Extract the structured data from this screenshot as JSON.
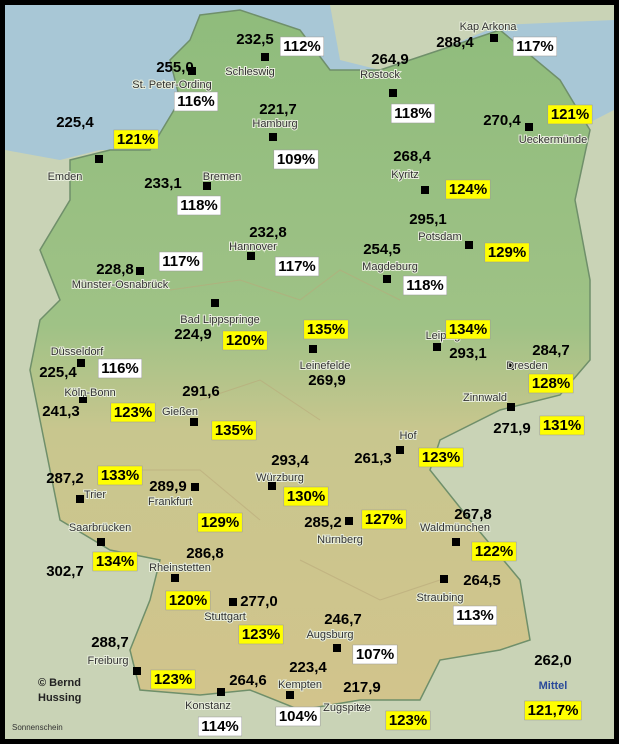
{
  "map": {
    "stations": [
      {
        "name": "Schleswig",
        "value": "232,5",
        "percent": "112%",
        "box": "#ffffff"
      },
      {
        "name": "St. Peter-Ording",
        "value": "255,0",
        "percent": "116%",
        "box": "#ffffff"
      },
      {
        "name": "Kap Arkona",
        "value": "288,4",
        "percent": "117%",
        "box": "#ffffff"
      },
      {
        "name": "Rostock",
        "value": "264,9",
        "percent": "118%",
        "box": "#ffffff"
      },
      {
        "name": "Hamburg",
        "value": "221,7",
        "percent": "109%",
        "box": "#ffffff"
      },
      {
        "name": "Emden",
        "value": "225,4",
        "percent": "121%",
        "box": "#ffff00"
      },
      {
        "name": "Ueckermünde",
        "value": "270,4",
        "percent": "121%",
        "box": "#ffff00"
      },
      {
        "name": "Kyritz",
        "value": "268,4",
        "percent": "124%",
        "box": "#ffff00"
      },
      {
        "name": "Bremen",
        "value": "233,1",
        "percent": "118%",
        "box": "#ffffff"
      },
      {
        "name": "Potsdam",
        "value": "295,1",
        "percent": "129%",
        "box": "#ffff00"
      },
      {
        "name": "Hannover",
        "value": "232,8",
        "percent": "117%",
        "box": "#ffffff"
      },
      {
        "name": "Münster-Osnabrück",
        "value": "228,8",
        "percent": "117%",
        "box": "#ffffff"
      },
      {
        "name": "Magdeburg",
        "value": "254,5",
        "percent": "118%",
        "box": "#ffffff"
      },
      {
        "name": "Bad Lippspringe",
        "value": "224,9",
        "percent": "120%",
        "box": "#ffff00"
      },
      {
        "name": "Leinefelde",
        "value": "269,9",
        "percent": "135%",
        "box": "#ffff00"
      },
      {
        "name": "Leipzig",
        "value": "293,1",
        "percent": "134%",
        "box": "#ffff00"
      },
      {
        "name": "Dresden",
        "value": "284,7",
        "percent": "128%",
        "box": "#ffff00"
      },
      {
        "name": "Düsseldorf",
        "value": "225,4",
        "percent": "116%",
        "box": "#ffffff"
      },
      {
        "name": "Köln-Bonn",
        "value": "241,3",
        "percent": "123%",
        "box": "#ffff00"
      },
      {
        "name": "Gießen",
        "value": "291,6",
        "percent": "135%",
        "box": "#ffff00"
      },
      {
        "name": "Zinnwald",
        "value": "271,9",
        "percent": "131%",
        "box": "#ffff00"
      },
      {
        "name": "Hof",
        "value": "261,3",
        "percent": "123%",
        "box": "#ffff00"
      },
      {
        "name": "Trier",
        "value": "287,2",
        "percent": "133%",
        "box": "#ffff00"
      },
      {
        "name": "Frankfurt",
        "value": "289,9",
        "percent": "129%",
        "box": "#ffff00"
      },
      {
        "name": "Würzburg",
        "value": "293,4",
        "percent": "130%",
        "box": "#ffff00"
      },
      {
        "name": "Nürnberg",
        "value": "285,2",
        "percent": "127%",
        "box": "#ffff00"
      },
      {
        "name": "Saarbrücken",
        "value": "302,7",
        "percent": "134%",
        "box": "#ffff00"
      },
      {
        "name": "Waldmünchen",
        "value": "267,8",
        "percent": "122%",
        "box": "#ffff00"
      },
      {
        "name": "Rheinstetten",
        "value": "286,8",
        "percent": "120%",
        "box": "#ffff00"
      },
      {
        "name": "Straubing",
        "value": "264,5",
        "percent": "113%",
        "box": "#ffffff"
      },
      {
        "name": "Stuttgart",
        "value": "277,0",
        "percent": "123%",
        "box": "#ffff00"
      },
      {
        "name": "Augsburg",
        "value": "246,7",
        "percent": "107%",
        "box": "#ffffff"
      },
      {
        "name": "Freiburg",
        "value": "288,7",
        "percent": "123%",
        "box": "#ffff00"
      },
      {
        "name": "Kempten",
        "value": "223,4",
        "percent": "104%",
        "box": "#ffffff"
      },
      {
        "name": "Konstanz",
        "value": "264,6",
        "percent": "114%",
        "box": "#ffffff"
      },
      {
        "name": "Zugspitze",
        "value": "217,9",
        "percent": "123%",
        "box": "#ffff00"
      }
    ],
    "average": {
      "name": "Mittel",
      "value": "262,0",
      "percent": "121,7%",
      "box": "#ffff00"
    },
    "credit_lines": [
      "© Bernd",
      "Hussing"
    ],
    "caption": "Sonnenschein"
  }
}
